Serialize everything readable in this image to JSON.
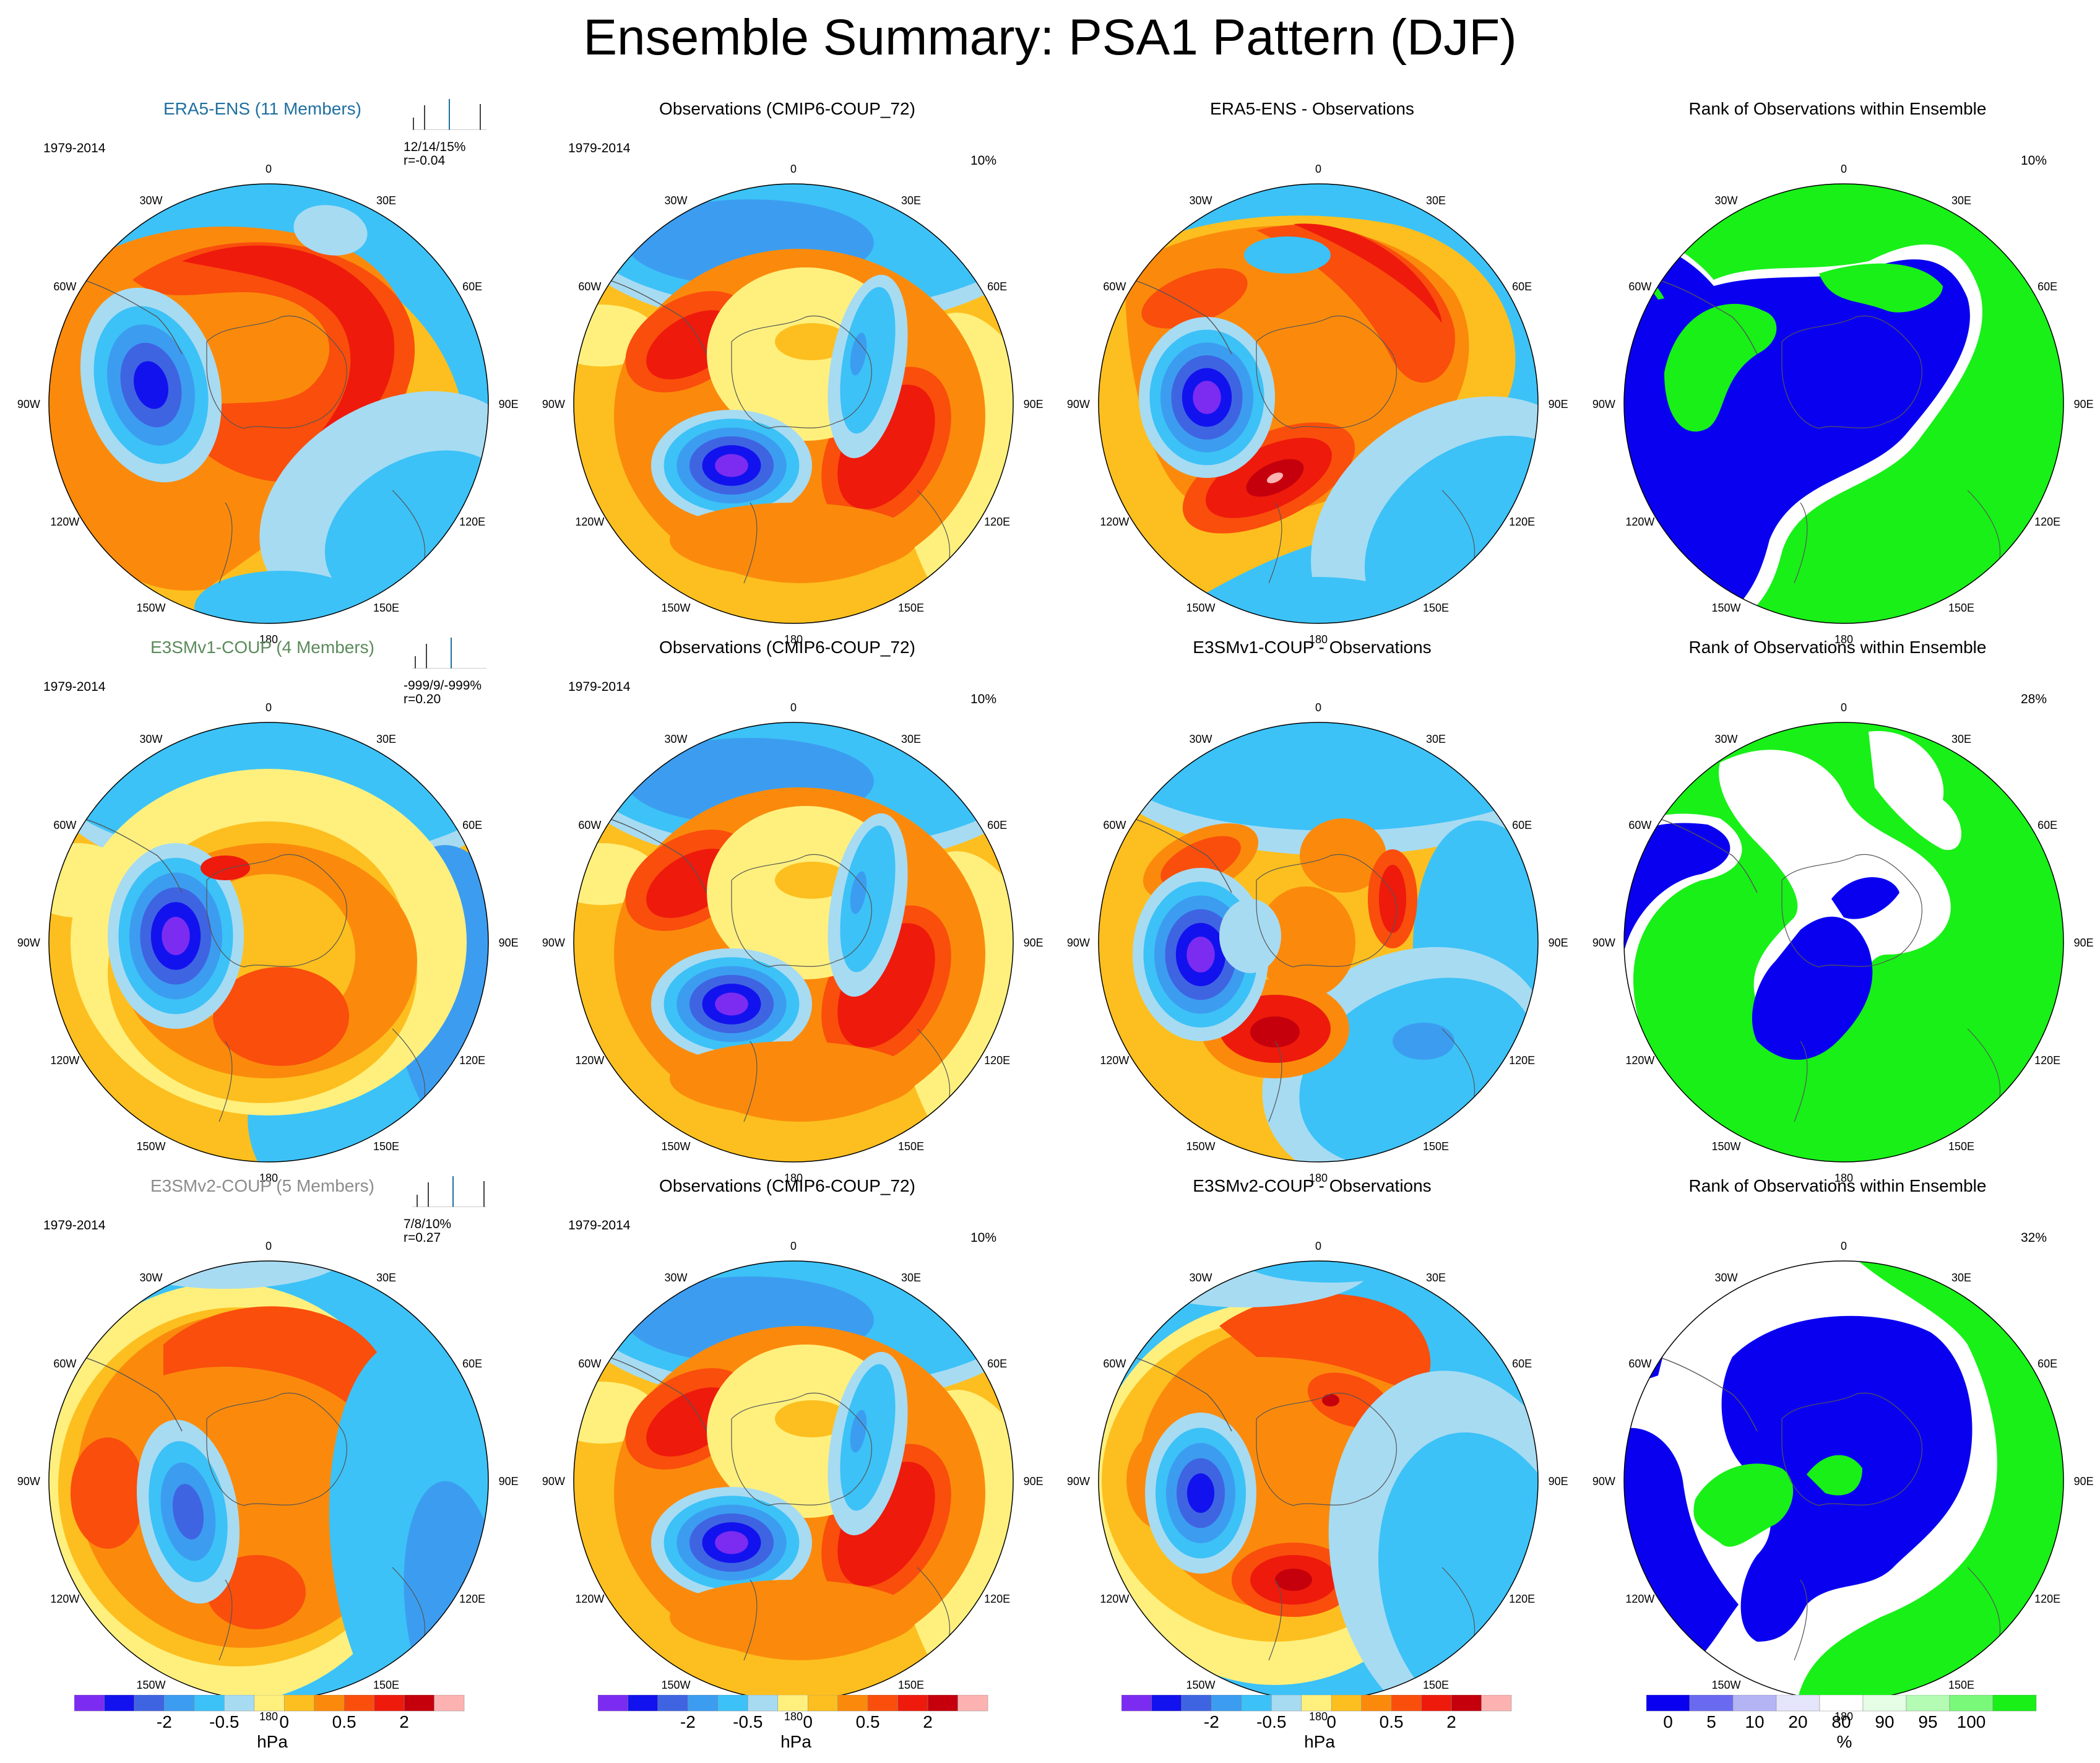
{
  "title": "Ensemble Summary: PSA1 Pattern (DJF)",
  "colors": {
    "fill_levels": [
      "#7b2cf0",
      "#1212ee",
      "#3f64e2",
      "#3c9df0",
      "#3cc2f7",
      "#a7dbf2",
      "#fff07e",
      "#fdbf1f",
      "#fb8a0c",
      "#fa4e0c",
      "#ee1a0c",
      "#c5000c",
      "#fdb2b2"
    ],
    "rank_levels": [
      "#0a00f0",
      "#6a6af0",
      "#b4b4f5",
      "#e4e4fb",
      "#ffffff",
      "#e4fde4",
      "#b4fbb4",
      "#7af87a",
      "#18f018"
    ],
    "coast": "#555555"
  },
  "map_labels": {
    "lon": [
      "0",
      "30E",
      "60E",
      "90E",
      "120E",
      "150E",
      "180",
      "150W",
      "120W",
      "90W",
      "60W",
      "30W"
    ]
  },
  "rows": [
    {
      "model": {
        "title": "ERA5-ENS (11 Members)",
        "title_color": "#1f6fa0",
        "years": "1979-2014",
        "stats": "12/14/15%",
        "corr": "r=-0.04"
      },
      "obs": {
        "title": "Observations (CMIP6-COUP_72)",
        "years": "1979-2014",
        "pct": "10%"
      },
      "diff": {
        "title": "ERA5-ENS - Observations"
      },
      "rank": {
        "title": "Rank of Observations within Ensemble",
        "pct": "10%"
      }
    },
    {
      "model": {
        "title": "E3SMv1-COUP (4 Members)",
        "title_color": "#5b8a5b",
        "years": "1979-2014",
        "stats": "-999/9/-999%",
        "corr": "r=0.20"
      },
      "obs": {
        "title": "Observations (CMIP6-COUP_72)",
        "years": "1979-2014",
        "pct": "10%"
      },
      "diff": {
        "title": "E3SMv1-COUP - Observations"
      },
      "rank": {
        "title": "Rank of Observations within Ensemble",
        "pct": "28%"
      }
    },
    {
      "model": {
        "title": "E3SMv2-COUP (5 Members)",
        "title_color": "#8c8c8c",
        "years": "1979-2014",
        "stats": "7/8/10%",
        "corr": "r=0.27"
      },
      "obs": {
        "title": "Observations (CMIP6-COUP_72)",
        "years": "1979-2014",
        "pct": "10%"
      },
      "diff": {
        "title": "E3SMv2-COUP - Observations"
      },
      "rank": {
        "title": "Rank of Observations within Ensemble",
        "pct": "32%"
      }
    }
  ],
  "colorbars": [
    {
      "ticks": [
        "-2",
        "-0.5",
        "0",
        "0.5",
        "2"
      ],
      "unit": "hPa"
    },
    {
      "ticks": [
        "-2",
        "-0.5",
        "0",
        "0.5",
        "2"
      ],
      "unit": "hPa"
    },
    {
      "ticks": [
        "-2",
        "-0.5",
        "0",
        "0.5",
        "2"
      ],
      "unit": "hPa"
    },
    {
      "ticks": [
        "0",
        "5",
        "10",
        "20",
        "80",
        "90",
        "95",
        "100"
      ],
      "unit": "%"
    }
  ],
  "chart_data": {
    "type": "heatmap",
    "title": "Ensemble Summary: PSA1 Pattern (DJF)",
    "projection": "south polar stereographic",
    "field_units": "hPa",
    "contour_levels_hPa": [
      -4,
      -3,
      -2,
      -1,
      -0.5,
      -0.2,
      0,
      0.2,
      0.5,
      1,
      2,
      3,
      4
    ],
    "colorbar_tick_labels_hPa": [
      "-2",
      "-0.5",
      "0",
      "0.5",
      "2"
    ],
    "rank_levels_pct": [
      0,
      5,
      10,
      20,
      80,
      90,
      95,
      100
    ],
    "panels": [
      {
        "row": 1,
        "col": 1,
        "title": "ERA5-ENS (11 Members)",
        "stats": "12/14/15%",
        "corr": "r=-0.04"
      },
      {
        "row": 1,
        "col": 2,
        "title": "Observations (CMIP6-COUP_72)",
        "pct": "10%"
      },
      {
        "row": 1,
        "col": 3,
        "title": "ERA5-ENS - Observations"
      },
      {
        "row": 1,
        "col": 4,
        "title": "Rank of Observations within Ensemble",
        "pct": "10%"
      },
      {
        "row": 2,
        "col": 1,
        "title": "E3SMv1-COUP (4 Members)",
        "stats": "-999/9/-999%",
        "corr": "r=0.20"
      },
      {
        "row": 2,
        "col": 2,
        "title": "Observations (CMIP6-COUP_72)",
        "pct": "10%"
      },
      {
        "row": 2,
        "col": 3,
        "title": "E3SMv1-COUP - Observations"
      },
      {
        "row": 2,
        "col": 4,
        "title": "Rank of Observations within Ensemble",
        "pct": "28%"
      },
      {
        "row": 3,
        "col": 1,
        "title": "E3SMv2-COUP (5 Members)",
        "stats": "7/8/10%",
        "corr": "r=0.27"
      },
      {
        "row": 3,
        "col": 2,
        "title": "Observations (CMIP6-COUP_72)",
        "pct": "10%"
      },
      {
        "row": 3,
        "col": 3,
        "title": "E3SMv2-COUP - Observations"
      },
      {
        "row": 3,
        "col": 4,
        "title": "Rank of Observations within Ensemble",
        "pct": "32%"
      }
    ]
  }
}
